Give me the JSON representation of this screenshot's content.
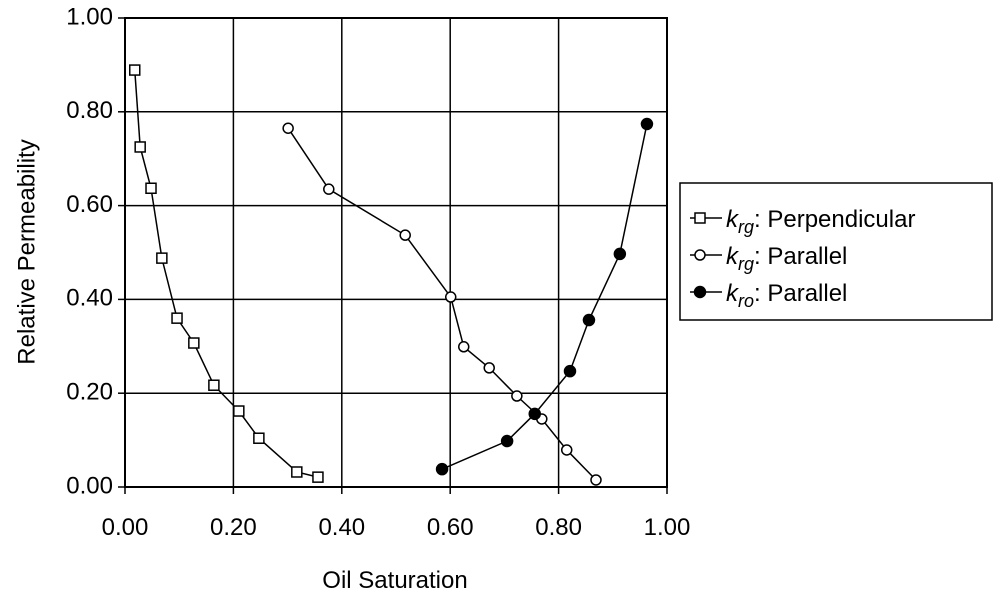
{
  "chart_data": {
    "type": "line",
    "x_label": "Oil Saturation",
    "y_label": "Relative Permeability",
    "xlim": [
      0,
      1
    ],
    "ylim": [
      0,
      1
    ],
    "xticks": [
      {
        "value": 0,
        "label": "0.00"
      },
      {
        "value": 0.2,
        "label": "0.20"
      },
      {
        "value": 0.4,
        "label": "0.40"
      },
      {
        "value": 0.6,
        "label": "0.60"
      },
      {
        "value": 0.8,
        "label": "0.80"
      },
      {
        "value": 1,
        "label": "1.00"
      }
    ],
    "yticks": [
      {
        "value": 0,
        "label": "0.00"
      },
      {
        "value": 0.2,
        "label": "0.20"
      },
      {
        "value": 0.4,
        "label": "0.40"
      },
      {
        "value": 0.6,
        "label": "0.60"
      },
      {
        "value": 0.8,
        "label": "0.80"
      },
      {
        "value": 1,
        "label": "1.00"
      }
    ],
    "grid": true,
    "legend": "right",
    "series": [
      {
        "name": "krg: Perpendicular",
        "color": "#000000",
        "marker": "open-square",
        "x": [
          0.018,
          0.028,
          0.048,
          0.068,
          0.096,
          0.127,
          0.164,
          0.21,
          0.247,
          0.317,
          0.356
        ],
        "values": [
          0.889,
          0.725,
          0.637,
          0.488,
          0.36,
          0.307,
          0.217,
          0.162,
          0.104,
          0.032,
          0.021
        ]
      },
      {
        "name": "krg: Parallel",
        "color": "#000000",
        "marker": "open-circle",
        "x": [
          0.301,
          0.376,
          0.517,
          0.601,
          0.625,
          0.672,
          0.723,
          0.769,
          0.815,
          0.869
        ],
        "values": [
          0.765,
          0.635,
          0.537,
          0.405,
          0.299,
          0.254,
          0.194,
          0.145,
          0.079,
          0.015
        ]
      },
      {
        "name": "kro: Parallel",
        "color": "#000000",
        "marker": "filled-circle",
        "x": [
          0.585,
          0.705,
          0.756,
          0.821,
          0.856,
          0.913,
          0.963
        ],
        "values": [
          0.038,
          0.098,
          0.156,
          0.247,
          0.356,
          0.497,
          0.774
        ]
      }
    ]
  }
}
